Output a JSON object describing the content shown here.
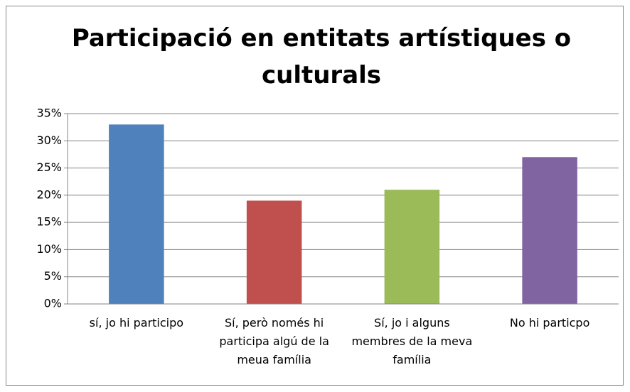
{
  "chart_data": {
    "type": "bar",
    "title": "Participació en entitats artístiques o culturals",
    "categories": [
      "sí, jo hi participo",
      "Sí, però només hi participa algú de la meua família",
      "Sí, jo i alguns membres de la meva família",
      "No hi particpo"
    ],
    "values": [
      33,
      19,
      21,
      27
    ],
    "colors": [
      "#4f81bd",
      "#c0504d",
      "#9bbb59",
      "#8064a2"
    ],
    "ylim": [
      0,
      35
    ],
    "yticks": [
      {
        "value": 0,
        "label": "0%"
      },
      {
        "value": 5,
        "label": "5%"
      },
      {
        "value": 10,
        "label": "10%"
      },
      {
        "value": 15,
        "label": "15%"
      },
      {
        "value": 20,
        "label": "20%"
      },
      {
        "value": 25,
        "label": "25%"
      },
      {
        "value": 30,
        "label": "30%"
      },
      {
        "value": 35,
        "label": "35%"
      }
    ],
    "grid": true
  }
}
